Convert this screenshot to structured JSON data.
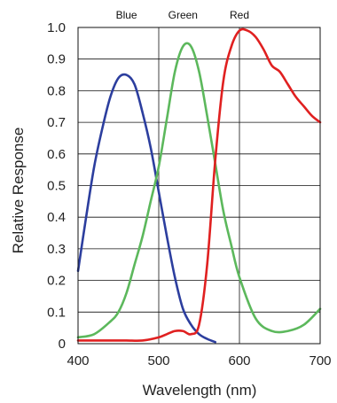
{
  "chart_data": {
    "type": "line",
    "xlabel": "Wavelength (nm)",
    "ylabel": "Relative Response",
    "xlim": [
      400,
      700
    ],
    "ylim": [
      0,
      1.0
    ],
    "x_ticks": [
      "400",
      "500",
      "600",
      "700"
    ],
    "y_ticks": [
      "0",
      "0.1",
      "0.2",
      "0.3",
      "0.4",
      "0.5",
      "0.6",
      "0.7",
      "0.8",
      "0.9",
      "1.0"
    ],
    "grid": true,
    "legend": "labels above plot",
    "series": [
      {
        "name": "Blue",
        "color": "#2c3e9e",
        "x": [
          400,
          410,
          420,
          430,
          440,
          450,
          460,
          470,
          480,
          490,
          500,
          510,
          520,
          530,
          540,
          550,
          560,
          570
        ],
        "y": [
          0.23,
          0.4,
          0.56,
          0.68,
          0.78,
          0.84,
          0.85,
          0.82,
          0.73,
          0.62,
          0.48,
          0.34,
          0.21,
          0.11,
          0.06,
          0.03,
          0.015,
          0.005
        ]
      },
      {
        "name": "Green",
        "color": "#5cb85c",
        "x": [
          400,
          420,
          440,
          450,
          460,
          470,
          480,
          490,
          500,
          510,
          520,
          530,
          540,
          550,
          560,
          570,
          580,
          590,
          600,
          620,
          640,
          660,
          680,
          700
        ],
        "y": [
          0.02,
          0.03,
          0.07,
          0.1,
          0.16,
          0.25,
          0.34,
          0.45,
          0.56,
          0.71,
          0.86,
          0.94,
          0.94,
          0.86,
          0.72,
          0.57,
          0.42,
          0.31,
          0.21,
          0.08,
          0.04,
          0.04,
          0.06,
          0.11
        ]
      },
      {
        "name": "Red",
        "color": "#e02020",
        "x": [
          400,
          420,
          440,
          460,
          480,
          500,
          510,
          520,
          530,
          540,
          550,
          560,
          570,
          580,
          590,
          600,
          610,
          620,
          630,
          640,
          650,
          660,
          670,
          680,
          690,
          700
        ],
        "y": [
          0.01,
          0.01,
          0.01,
          0.01,
          0.01,
          0.02,
          0.03,
          0.04,
          0.04,
          0.03,
          0.06,
          0.25,
          0.58,
          0.83,
          0.94,
          0.99,
          0.99,
          0.97,
          0.93,
          0.88,
          0.86,
          0.82,
          0.78,
          0.75,
          0.72,
          0.7
        ]
      }
    ]
  }
}
